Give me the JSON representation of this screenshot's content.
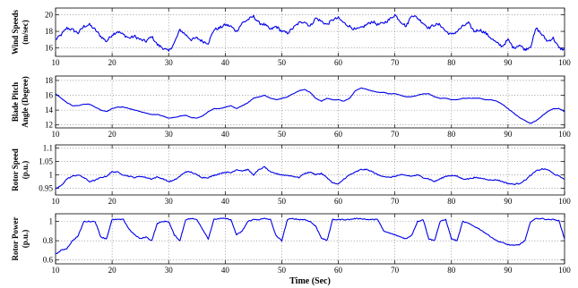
{
  "chart_data": [
    {
      "type": "line",
      "ylabel": [
        "Wind Speeds",
        "(m/sec)"
      ],
      "xlabel": "",
      "xlim": [
        10,
        100
      ],
      "ylim": [
        15,
        20.8
      ],
      "xticks": [
        10,
        20,
        30,
        40,
        50,
        60,
        70,
        80,
        90,
        100
      ],
      "yticks": [
        16,
        18,
        20
      ],
      "ytick_labels": [
        "16",
        "18",
        "20"
      ],
      "color": "#0000e6",
      "grid": true,
      "noise": 0.35,
      "series": [
        {
          "x": [
            10,
            11,
            12,
            13,
            14,
            15,
            16,
            17,
            18,
            19,
            20,
            21,
            22,
            23,
            24,
            25,
            26,
            27,
            28,
            29,
            30,
            31,
            32,
            33,
            34,
            35,
            36,
            37,
            38,
            39,
            40,
            41,
            42,
            43,
            44,
            45,
            46,
            47,
            48,
            49,
            50,
            51,
            52,
            53,
            54,
            55,
            56,
            57,
            58,
            59,
            60,
            61,
            62,
            63,
            64,
            65,
            66,
            67,
            68,
            69,
            70,
            71,
            72,
            73,
            74,
            75,
            76,
            77,
            78,
            79,
            80,
            81,
            82,
            83,
            84,
            85,
            86,
            87,
            88,
            89,
            90,
            91,
            92,
            93,
            94,
            95,
            96,
            97,
            98,
            99,
            100
          ],
          "y": [
            17.0,
            17.6,
            18.4,
            18.2,
            17.8,
            18.6,
            18.8,
            18.2,
            17.4,
            16.8,
            17.6,
            18.0,
            17.6,
            17.2,
            17.4,
            17.0,
            16.8,
            17.4,
            16.4,
            16.0,
            15.6,
            16.6,
            18.2,
            17.6,
            17.0,
            17.2,
            16.8,
            16.6,
            18.2,
            18.4,
            18.8,
            18.6,
            18.0,
            19.0,
            19.4,
            19.8,
            19.0,
            18.8,
            18.2,
            18.6,
            18.0,
            17.8,
            18.4,
            19.0,
            19.2,
            18.6,
            19.6,
            19.2,
            18.8,
            19.4,
            19.6,
            19.0,
            18.6,
            18.2,
            18.4,
            18.8,
            19.2,
            18.8,
            19.0,
            19.4,
            20.0,
            19.2,
            18.6,
            20.0,
            19.6,
            19.0,
            18.4,
            18.8,
            18.8,
            18.0,
            17.6,
            18.0,
            18.6,
            19.0,
            18.0,
            18.2,
            17.8,
            17.2,
            16.6,
            16.2,
            17.0,
            16.0,
            16.4,
            15.8,
            16.2,
            18.4,
            17.6,
            16.8,
            17.2,
            16.0,
            15.8
          ]
        }
      ]
    },
    {
      "type": "line",
      "ylabel": [
        "Blade Pitch",
        "Angle (Degree)"
      ],
      "xlabel": "",
      "xlim": [
        10,
        100
      ],
      "ylim": [
        11.6,
        18.6
      ],
      "xticks": [
        10,
        20,
        30,
        40,
        50,
        60,
        70,
        80,
        90,
        100
      ],
      "yticks": [
        12,
        14,
        16,
        18
      ],
      "ytick_labels": [
        "12",
        "14",
        "16",
        "18"
      ],
      "color": "#0000e6",
      "grid": true,
      "noise": 0.06,
      "series": [
        {
          "x": [
            10,
            11,
            12,
            13,
            14,
            15,
            16,
            17,
            18,
            19,
            20,
            21,
            22,
            23,
            24,
            25,
            26,
            27,
            28,
            29,
            30,
            31,
            32,
            33,
            34,
            35,
            36,
            37,
            38,
            39,
            40,
            41,
            42,
            43,
            44,
            45,
            46,
            47,
            48,
            49,
            50,
            51,
            52,
            53,
            54,
            55,
            56,
            57,
            58,
            59,
            60,
            61,
            62,
            63,
            64,
            65,
            66,
            67,
            68,
            69,
            70,
            71,
            72,
            73,
            74,
            75,
            76,
            77,
            78,
            79,
            80,
            81,
            82,
            83,
            84,
            85,
            86,
            87,
            88,
            89,
            90,
            91,
            92,
            93,
            94,
            95,
            96,
            97,
            98,
            99,
            100
          ],
          "y": [
            16.2,
            15.6,
            15.0,
            14.6,
            14.6,
            14.8,
            14.8,
            14.4,
            14.0,
            13.8,
            14.2,
            14.4,
            14.4,
            14.2,
            14.0,
            13.8,
            13.6,
            13.4,
            13.4,
            13.2,
            12.9,
            13.0,
            13.2,
            13.3,
            13.0,
            12.9,
            13.2,
            13.8,
            14.2,
            14.2,
            14.4,
            14.6,
            14.2,
            14.6,
            15.0,
            15.6,
            15.8,
            16.0,
            15.6,
            15.4,
            15.6,
            15.8,
            16.2,
            16.6,
            16.8,
            16.4,
            15.6,
            15.2,
            15.6,
            15.4,
            15.4,
            15.2,
            15.6,
            16.6,
            17.0,
            16.8,
            16.6,
            16.4,
            16.4,
            16.2,
            16.2,
            16.0,
            15.8,
            15.8,
            16.0,
            16.2,
            16.2,
            15.8,
            15.6,
            15.6,
            15.4,
            15.4,
            15.6,
            15.6,
            15.6,
            15.6,
            15.4,
            15.4,
            15.2,
            14.8,
            14.2,
            13.6,
            13.0,
            12.6,
            12.2,
            12.6,
            13.2,
            13.8,
            14.2,
            14.2,
            13.8
          ]
        }
      ]
    },
    {
      "type": "line",
      "ylabel": [
        "Rotor Speed",
        "(p.u.)"
      ],
      "xlabel": "",
      "xlim": [
        10,
        100
      ],
      "ylim": [
        0.925,
        1.112
      ],
      "xticks": [
        10,
        20,
        30,
        40,
        50,
        60,
        70,
        80,
        90,
        100
      ],
      "yticks": [
        0.95,
        1.0,
        1.05,
        1.1
      ],
      "ytick_labels": [
        "0.95",
        "1",
        "1.05",
        "1.1"
      ],
      "color": "#0000e6",
      "grid": true,
      "noise": 0.004,
      "series": [
        {
          "x": [
            10,
            11,
            12,
            13,
            14,
            15,
            16,
            17,
            18,
            19,
            20,
            21,
            22,
            23,
            24,
            25,
            26,
            27,
            28,
            29,
            30,
            31,
            32,
            33,
            34,
            35,
            36,
            37,
            38,
            39,
            40,
            41,
            42,
            43,
            44,
            45,
            46,
            47,
            48,
            49,
            50,
            51,
            52,
            53,
            54,
            55,
            56,
            57,
            58,
            59,
            60,
            61,
            62,
            63,
            64,
            65,
            66,
            67,
            68,
            69,
            70,
            71,
            72,
            73,
            74,
            75,
            76,
            77,
            78,
            79,
            80,
            81,
            82,
            83,
            84,
            85,
            86,
            87,
            88,
            89,
            90,
            91,
            92,
            93,
            94,
            95,
            96,
            97,
            98,
            99,
            100
          ],
          "y": [
            0.948,
            0.96,
            0.985,
            0.995,
            1.0,
            0.99,
            0.975,
            0.98,
            0.99,
            0.995,
            1.012,
            1.01,
            1.0,
            0.995,
            0.99,
            0.995,
            0.99,
            0.985,
            0.992,
            0.985,
            0.975,
            0.98,
            0.995,
            1.012,
            1.01,
            1.0,
            0.99,
            0.99,
            0.998,
            1.005,
            1.01,
            1.008,
            1.02,
            1.015,
            1.02,
            1.0,
            1.02,
            1.03,
            1.01,
            1.005,
            1.0,
            0.998,
            0.995,
            0.99,
            1.005,
            1.01,
            1.002,
            1.005,
            0.99,
            0.97,
            0.965,
            0.985,
            1.0,
            1.01,
            1.02,
            1.02,
            1.012,
            1.0,
            0.995,
            0.99,
            0.995,
            1.0,
            0.998,
            0.995,
            1.0,
            0.99,
            0.985,
            0.975,
            0.985,
            0.995,
            0.998,
            0.995,
            0.985,
            0.985,
            0.99,
            0.988,
            0.985,
            0.98,
            0.982,
            0.975,
            0.968,
            0.965,
            0.968,
            0.98,
            0.998,
            1.015,
            1.022,
            1.02,
            1.005,
            0.995,
            0.985
          ]
        }
      ]
    },
    {
      "type": "line",
      "ylabel": [
        "Rotor Power",
        "(p.u.)"
      ],
      "xlabel": "Time (Sec)",
      "xlim": [
        10,
        100
      ],
      "ylim": [
        0.56,
        1.08
      ],
      "xticks": [
        10,
        20,
        30,
        40,
        50,
        60,
        70,
        80,
        90,
        100
      ],
      "yticks": [
        0.6,
        0.8,
        1.0
      ],
      "ytick_labels": [
        "0.6",
        "0.8",
        "1"
      ],
      "color": "#0000e6",
      "grid": true,
      "noise": 0.01,
      "series": [
        {
          "x": [
            10,
            11,
            12,
            13,
            14,
            15,
            16,
            17,
            18,
            19,
            20,
            21,
            22,
            23,
            24,
            25,
            26,
            27,
            28,
            29,
            30,
            31,
            32,
            33,
            34,
            35,
            36,
            37,
            38,
            39,
            40,
            41,
            42,
            43,
            44,
            45,
            46,
            47,
            48,
            49,
            50,
            51,
            52,
            53,
            54,
            55,
            56,
            57,
            58,
            59,
            60,
            61,
            62,
            63,
            64,
            65,
            66,
            67,
            68,
            69,
            70,
            71,
            72,
            73,
            74,
            75,
            76,
            77,
            78,
            79,
            80,
            81,
            82,
            83,
            84,
            85,
            86,
            87,
            88,
            89,
            90,
            91,
            92,
            93,
            94,
            95,
            96,
            97,
            98,
            99,
            100
          ],
          "y": [
            0.66,
            0.7,
            0.72,
            0.8,
            0.85,
            1.0,
            1.0,
            1.0,
            0.84,
            0.82,
            1.02,
            1.02,
            1.02,
            0.92,
            0.86,
            0.82,
            0.84,
            0.8,
            0.98,
            1.0,
            1.0,
            0.86,
            0.8,
            1.02,
            1.03,
            1.02,
            0.92,
            0.82,
            1.02,
            1.03,
            1.03,
            1.02,
            0.86,
            0.9,
            1.0,
            1.02,
            1.02,
            1.03,
            1.02,
            0.85,
            0.8,
            1.02,
            1.03,
            1.02,
            1.02,
            1.0,
            0.95,
            0.83,
            0.8,
            1.02,
            1.02,
            1.02,
            1.02,
            1.03,
            1.03,
            1.02,
            1.02,
            1.02,
            0.9,
            0.88,
            0.86,
            0.84,
            0.82,
            0.86,
            1.0,
            1.02,
            0.82,
            0.8,
            1.0,
            1.02,
            0.82,
            0.8,
            1.0,
            0.98,
            0.95,
            0.92,
            0.88,
            0.84,
            0.8,
            0.78,
            0.76,
            0.75,
            0.76,
            0.8,
            1.0,
            1.03,
            1.03,
            1.02,
            1.02,
            1.01,
            0.82
          ]
        }
      ]
    }
  ]
}
